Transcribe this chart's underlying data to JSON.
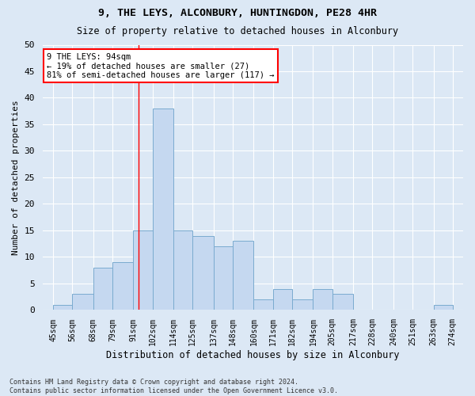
{
  "title_line1": "9, THE LEYS, ALCONBURY, HUNTINGDON, PE28 4HR",
  "title_line2": "Size of property relative to detached houses in Alconbury",
  "xlabel": "Distribution of detached houses by size in Alconbury",
  "ylabel": "Number of detached properties",
  "bar_left_edges": [
    45,
    56,
    68,
    79,
    91,
    102,
    114,
    125,
    137,
    148,
    160,
    171,
    182,
    194,
    205,
    217,
    228,
    240,
    251,
    263
  ],
  "bar_widths": [
    11,
    12,
    11,
    12,
    11,
    12,
    11,
    12,
    11,
    12,
    11,
    11,
    12,
    11,
    12,
    11,
    12,
    11,
    12,
    11
  ],
  "bar_heights": [
    1,
    3,
    8,
    9,
    15,
    38,
    15,
    14,
    12,
    13,
    2,
    4,
    2,
    4,
    3,
    0,
    0,
    0,
    0,
    1
  ],
  "bar_color": "#c5d8f0",
  "bar_edge_color": "#7aabcf",
  "tick_labels": [
    "45sqm",
    "56sqm",
    "68sqm",
    "79sqm",
    "91sqm",
    "102sqm",
    "114sqm",
    "125sqm",
    "137sqm",
    "148sqm",
    "160sqm",
    "171sqm",
    "182sqm",
    "194sqm",
    "205sqm",
    "217sqm",
    "228sqm",
    "240sqm",
    "251sqm",
    "263sqm",
    "274sqm"
  ],
  "tick_positions": [
    45,
    56,
    68,
    79,
    91,
    102,
    114,
    125,
    137,
    148,
    160,
    171,
    182,
    194,
    205,
    217,
    228,
    240,
    251,
    263,
    274
  ],
  "ylim": [
    0,
    50
  ],
  "yticks": [
    0,
    5,
    10,
    15,
    20,
    25,
    30,
    35,
    40,
    45,
    50
  ],
  "xlim_left": 39,
  "xlim_right": 280,
  "red_line_x": 94,
  "annotation_title": "9 THE LEYS: 94sqm",
  "annotation_line1": "← 19% of detached houses are smaller (27)",
  "annotation_line2": "81% of semi-detached houses are larger (117) →",
  "bg_color": "#dce8f5",
  "plot_bg_color": "#dce8f5",
  "grid_color": "#ffffff",
  "footer_line1": "Contains HM Land Registry data © Crown copyright and database right 2024.",
  "footer_line2": "Contains public sector information licensed under the Open Government Licence v3.0."
}
